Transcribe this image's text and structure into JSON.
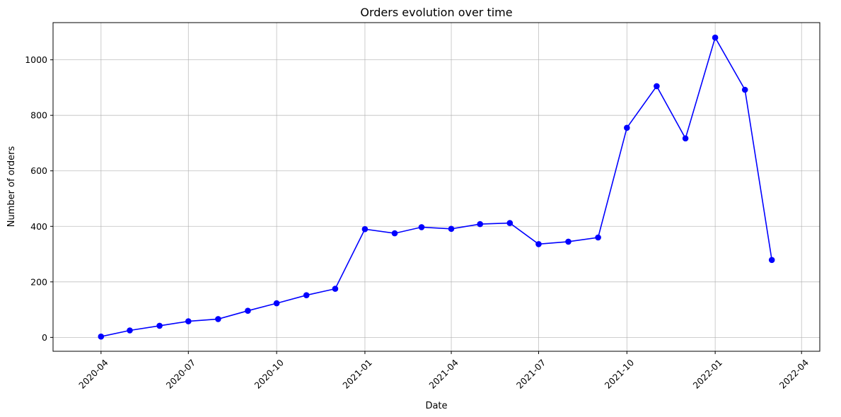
{
  "chart_data": {
    "type": "line",
    "title": "Orders evolution over time",
    "xlabel": "Date",
    "ylabel": "Number of orders",
    "x_axis": "date",
    "x": [
      "2020-04-01",
      "2020-05-01",
      "2020-06-01",
      "2020-07-01",
      "2020-08-01",
      "2020-09-01",
      "2020-10-01",
      "2020-11-01",
      "2020-12-01",
      "2021-01-01",
      "2021-02-01",
      "2021-03-01",
      "2021-04-01",
      "2021-05-01",
      "2021-06-01",
      "2021-07-01",
      "2021-08-01",
      "2021-09-01",
      "2021-10-01",
      "2021-11-01",
      "2021-12-01",
      "2022-01-01",
      "2022-02-01",
      "2022-03-01"
    ],
    "series": [
      {
        "values": [
          3,
          25,
          42,
          58,
          66,
          96,
          123,
          152,
          175,
          390,
          375,
          397,
          391,
          408,
          412,
          336,
          345,
          360,
          755,
          905,
          717,
          1080,
          892,
          279
        ],
        "color": "#0000ff",
        "marker": "circle"
      }
    ],
    "xticks": [
      "2020-04",
      "2020-07",
      "2020-10",
      "2021-01",
      "2021-04",
      "2021-07",
      "2021-10",
      "2022-01",
      "2022-04"
    ],
    "yticks": [
      0,
      200,
      400,
      600,
      800,
      1000
    ],
    "xlim": [
      "2020-02-11",
      "2022-04-20"
    ],
    "ylim": [
      -50,
      1134
    ],
    "grid": true
  }
}
